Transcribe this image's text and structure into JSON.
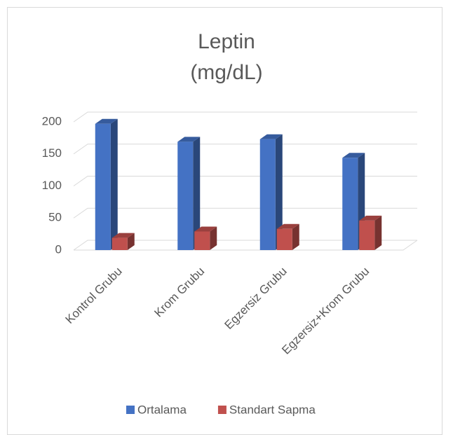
{
  "chart_data": {
    "type": "bar3d",
    "title": "Leptin (mg/dL)",
    "categories": [
      "Kontrol Grubu",
      "Krom Grubu",
      "Egzersiz Grubu",
      "Egzersiz+Krom Grubu"
    ],
    "series": [
      {
        "name": "Ortalama",
        "color": "#4472c4",
        "values": [
          197,
          169,
          173,
          144
        ]
      },
      {
        "name": "Standart Sapma",
        "color": "#c0504d",
        "values": [
          19,
          29,
          33,
          46
        ]
      }
    ],
    "ylim": [
      0,
      200
    ],
    "yticks": [
      0,
      50,
      100,
      150,
      200
    ],
    "grid": true,
    "legend": "bottom"
  }
}
